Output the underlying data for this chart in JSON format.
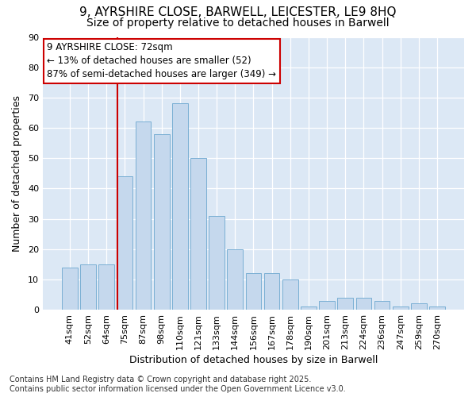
{
  "title_line1": "9, AYRSHIRE CLOSE, BARWELL, LEICESTER, LE9 8HQ",
  "title_line2": "Size of property relative to detached houses in Barwell",
  "xlabel": "Distribution of detached houses by size in Barwell",
  "ylabel": "Number of detached properties",
  "categories": [
    "41sqm",
    "52sqm",
    "64sqm",
    "75sqm",
    "87sqm",
    "98sqm",
    "110sqm",
    "121sqm",
    "133sqm",
    "144sqm",
    "156sqm",
    "167sqm",
    "178sqm",
    "190sqm",
    "201sqm",
    "213sqm",
    "224sqm",
    "236sqm",
    "247sqm",
    "259sqm",
    "270sqm"
  ],
  "values": [
    14,
    15,
    15,
    44,
    62,
    58,
    68,
    50,
    31,
    20,
    12,
    12,
    10,
    1,
    3,
    4,
    4,
    3,
    1,
    2,
    1
  ],
  "bar_color": "#c5d8ed",
  "bar_edge_color": "#7aafd4",
  "vline_x_index": 3,
  "vline_color": "#cc0000",
  "annotation_text": "9 AYRSHIRE CLOSE: 72sqm\n← 13% of detached houses are smaller (52)\n87% of semi-detached houses are larger (349) →",
  "annotation_box_facecolor": "#ffffff",
  "annotation_box_edgecolor": "#cc0000",
  "ylim": [
    0,
    90
  ],
  "yticks": [
    0,
    10,
    20,
    30,
    40,
    50,
    60,
    70,
    80,
    90
  ],
  "plot_bg_color": "#dce8f5",
  "fig_bg_color": "#ffffff",
  "grid_color": "#ffffff",
  "footer_text": "Contains HM Land Registry data © Crown copyright and database right 2025.\nContains public sector information licensed under the Open Government Licence v3.0.",
  "title_fontsize": 11,
  "subtitle_fontsize": 10,
  "axis_label_fontsize": 9,
  "tick_fontsize": 8,
  "annotation_fontsize": 8.5,
  "footer_fontsize": 7
}
